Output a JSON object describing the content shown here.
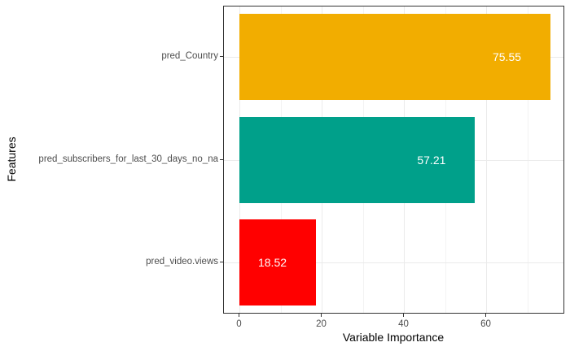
{
  "chart_data": {
    "type": "bar",
    "orientation": "horizontal",
    "title": "",
    "xlabel": "Variable Importance",
    "ylabel": "Features",
    "categories": [
      "pred_Country",
      "pred_subscribers_for_last_30_days_no_na",
      "pred_video.views"
    ],
    "values": [
      75.55,
      57.21,
      18.52
    ],
    "value_labels": [
      "75.55",
      "57.21",
      "18.52"
    ],
    "colors": [
      "#F2AD00",
      "#00A08A",
      "#FF0000"
    ],
    "xticks": [
      0,
      20,
      40,
      60
    ],
    "xlim": [
      -3.78,
      79.33
    ],
    "grid": true,
    "legend": "none"
  }
}
